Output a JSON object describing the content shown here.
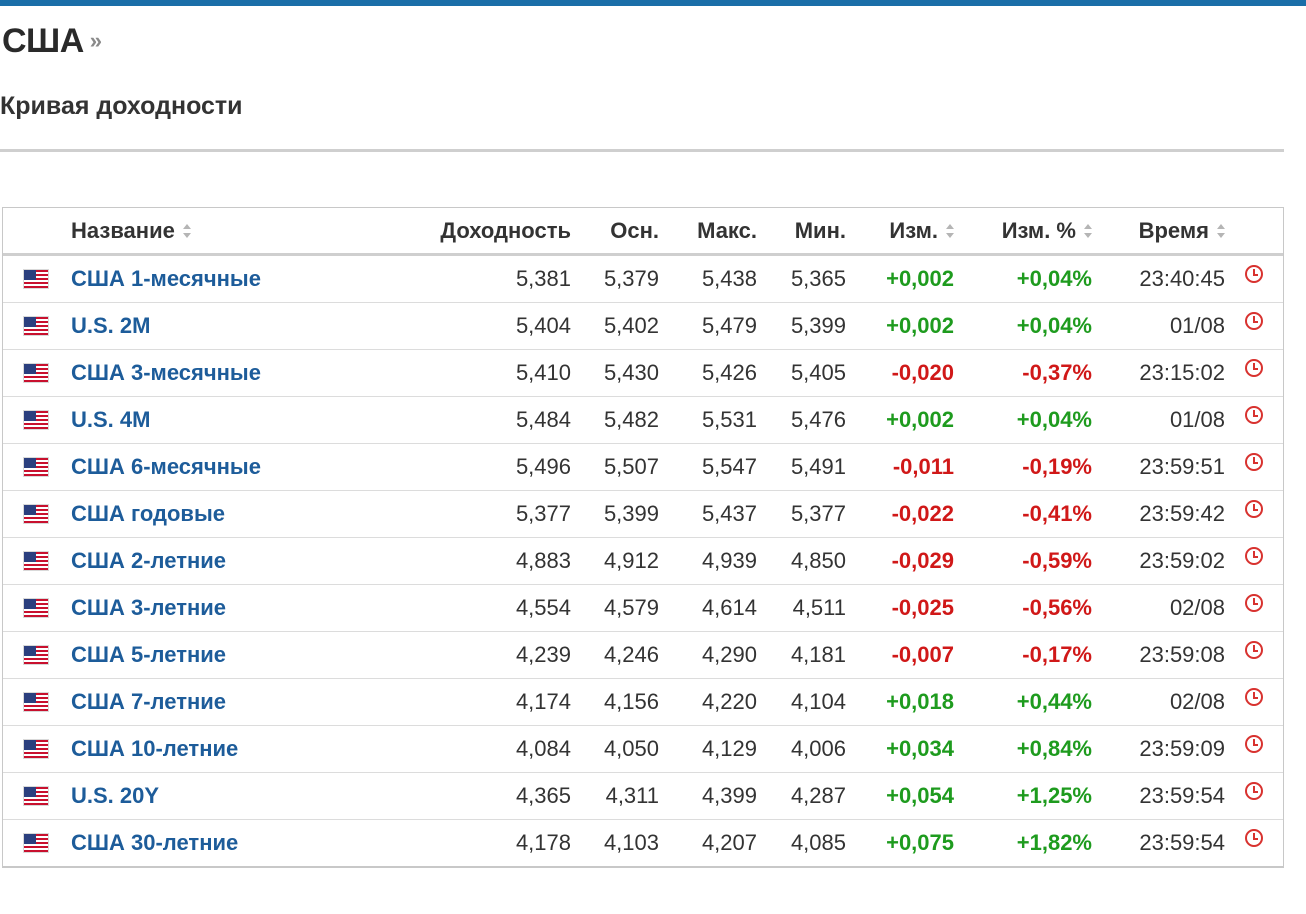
{
  "page": {
    "title": "США",
    "title_arrow": "»",
    "section": "Кривая доходности"
  },
  "colors": {
    "accent_bar": "#1a6ea8",
    "link": "#1d5c9a",
    "positive": "#1e9b1e",
    "negative": "#d01818",
    "clock": "#d8322f"
  },
  "table": {
    "headers": {
      "name": "Название",
      "yield": "Доходность",
      "prev": "Осн.",
      "high": "Макс.",
      "low": "Мин.",
      "chg": "Изм.",
      "chg_pct": "Изм. %",
      "time": "Время"
    },
    "rows": [
      {
        "flag": "us-flag-icon",
        "name": "США 1-месячные",
        "yield": "5,381",
        "prev": "5,379",
        "high": "5,438",
        "low": "5,365",
        "chg": "+0,002",
        "chg_pct": "+0,04%",
        "dir": "pos",
        "time": "23:40:45"
      },
      {
        "flag": "us-flag-icon",
        "name": "U.S. 2M",
        "yield": "5,404",
        "prev": "5,402",
        "high": "5,479",
        "low": "5,399",
        "chg": "+0,002",
        "chg_pct": "+0,04%",
        "dir": "pos",
        "time": "01/08"
      },
      {
        "flag": "us-flag-icon",
        "name": "США 3-месячные",
        "yield": "5,410",
        "prev": "5,430",
        "high": "5,426",
        "low": "5,405",
        "chg": "-0,020",
        "chg_pct": "-0,37%",
        "dir": "neg",
        "time": "23:15:02"
      },
      {
        "flag": "us-flag-icon",
        "name": "U.S. 4M",
        "yield": "5,484",
        "prev": "5,482",
        "high": "5,531",
        "low": "5,476",
        "chg": "+0,002",
        "chg_pct": "+0,04%",
        "dir": "pos",
        "time": "01/08"
      },
      {
        "flag": "us-flag-icon",
        "name": "США 6-месячные",
        "yield": "5,496",
        "prev": "5,507",
        "high": "5,547",
        "low": "5,491",
        "chg": "-0,011",
        "chg_pct": "-0,19%",
        "dir": "neg",
        "time": "23:59:51"
      },
      {
        "flag": "us-flag-icon",
        "name": "США годовые",
        "yield": "5,377",
        "prev": "5,399",
        "high": "5,437",
        "low": "5,377",
        "chg": "-0,022",
        "chg_pct": "-0,41%",
        "dir": "neg",
        "time": "23:59:42"
      },
      {
        "flag": "us-flag-icon",
        "name": "США 2-летние",
        "yield": "4,883",
        "prev": "4,912",
        "high": "4,939",
        "low": "4,850",
        "chg": "-0,029",
        "chg_pct": "-0,59%",
        "dir": "neg",
        "time": "23:59:02"
      },
      {
        "flag": "us-flag-icon",
        "name": "США 3-летние",
        "yield": "4,554",
        "prev": "4,579",
        "high": "4,614",
        "low": "4,511",
        "chg": "-0,025",
        "chg_pct": "-0,56%",
        "dir": "neg",
        "time": "02/08"
      },
      {
        "flag": "us-flag-icon",
        "name": "США 5-летние",
        "yield": "4,239",
        "prev": "4,246",
        "high": "4,290",
        "low": "4,181",
        "chg": "-0,007",
        "chg_pct": "-0,17%",
        "dir": "neg",
        "time": "23:59:08"
      },
      {
        "flag": "us-flag-icon",
        "name": "США 7-летние",
        "yield": "4,174",
        "prev": "4,156",
        "high": "4,220",
        "low": "4,104",
        "chg": "+0,018",
        "chg_pct": "+0,44%",
        "dir": "pos",
        "time": "02/08"
      },
      {
        "flag": "us-flag-icon",
        "name": "США 10-летние",
        "yield": "4,084",
        "prev": "4,050",
        "high": "4,129",
        "low": "4,006",
        "chg": "+0,034",
        "chg_pct": "+0,84%",
        "dir": "pos",
        "time": "23:59:09"
      },
      {
        "flag": "us-flag-icon",
        "name": "U.S. 20Y",
        "yield": "4,365",
        "prev": "4,311",
        "high": "4,399",
        "low": "4,287",
        "chg": "+0,054",
        "chg_pct": "+1,25%",
        "dir": "pos",
        "time": "23:59:54"
      },
      {
        "flag": "us-flag-icon",
        "name": "США 30-летние",
        "yield": "4,178",
        "prev": "4,103",
        "high": "4,207",
        "low": "4,085",
        "chg": "+0,075",
        "chg_pct": "+1,82%",
        "dir": "pos",
        "time": "23:59:54"
      }
    ]
  }
}
